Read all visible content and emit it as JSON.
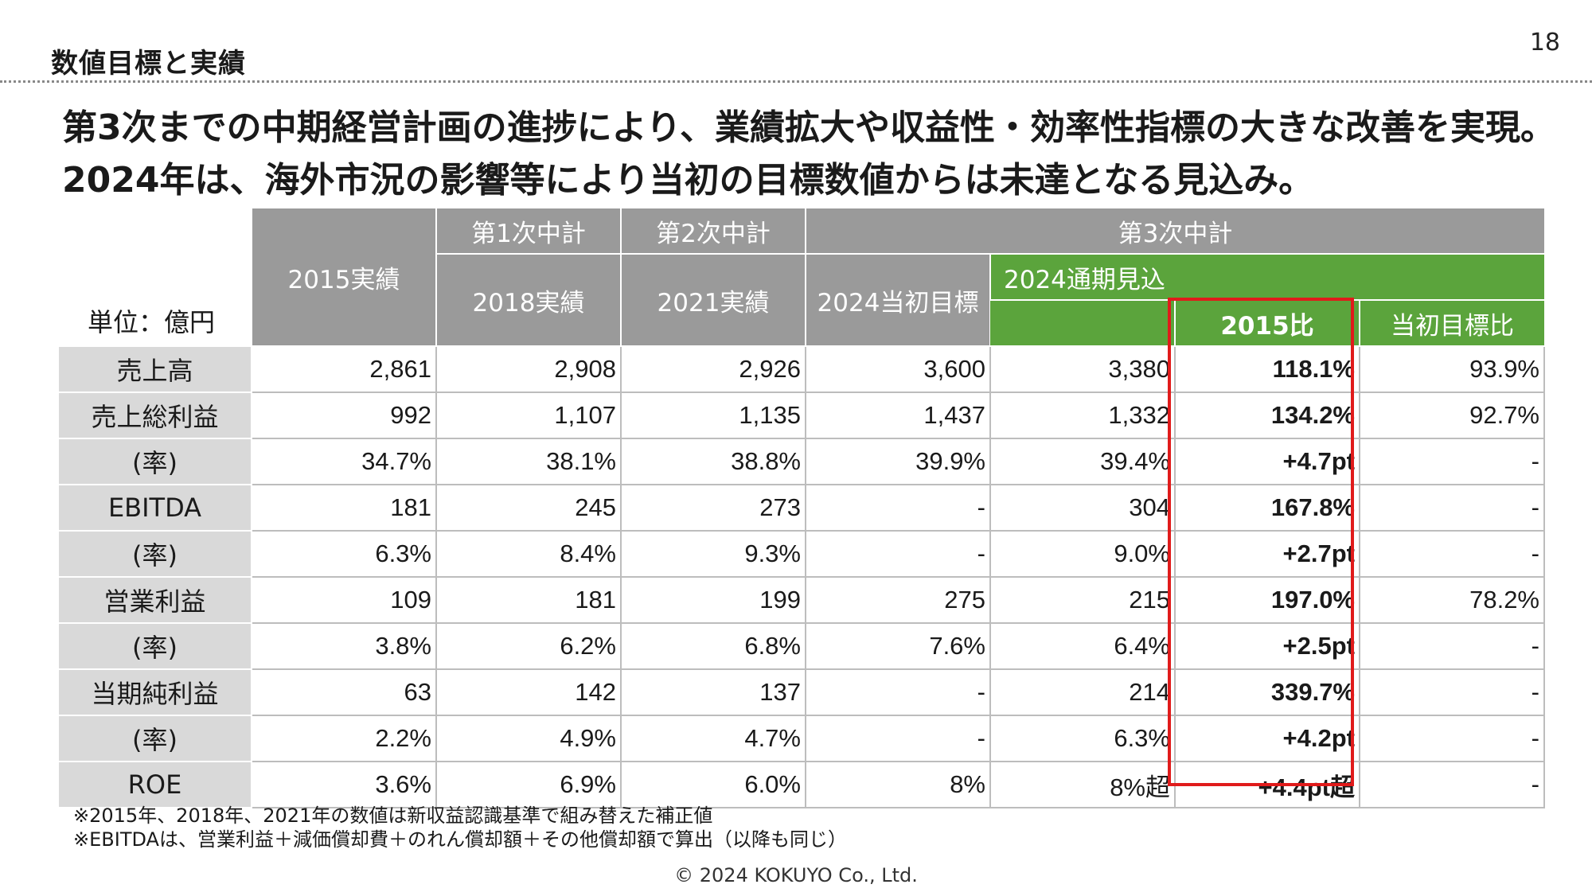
{
  "section_title": "数値目標と実績",
  "page_number": "18",
  "headline": "第3次までの中期経営計画の進捗により、業績拡大や収益性・効率性指標の大きな改善を実現。2024年は、海外市況の影響等により当初の目標数値からは未達となる見込み。",
  "table": {
    "unit_label": "単位：億円",
    "group_headers": {
      "plan1": "第1次中計",
      "plan2": "第2次中計",
      "plan3": "第3次中計"
    },
    "columns": {
      "y2015": "2015実績",
      "y2018": "2018実績",
      "y2021": "2021実績",
      "target2024": "2024当初目標",
      "forecast2024": "2024通期見込",
      "vs2015": "2015比",
      "vs_target": "当初目標比"
    },
    "rows": [
      {
        "label": "売上高",
        "values": [
          "2,861",
          "2,908",
          "2,926",
          "3,600",
          "3,380",
          "118.1%",
          "93.9%"
        ]
      },
      {
        "label": "売上総利益",
        "values": [
          "992",
          "1,107",
          "1,135",
          "1,437",
          "1,332",
          "134.2%",
          "92.7%"
        ]
      },
      {
        "label": "(率)",
        "values": [
          "34.7%",
          "38.1%",
          "38.8%",
          "39.9%",
          "39.4%",
          "+4.7pt",
          "-"
        ]
      },
      {
        "label": "EBITDA",
        "values": [
          "181",
          "245",
          "273",
          "-",
          "304",
          "167.8%",
          "-"
        ]
      },
      {
        "label": "(率)",
        "values": [
          "6.3%",
          "8.4%",
          "9.3%",
          "-",
          "9.0%",
          "+2.7pt",
          "-"
        ]
      },
      {
        "label": "営業利益",
        "values": [
          "109",
          "181",
          "199",
          "275",
          "215",
          "197.0%",
          "78.2%"
        ]
      },
      {
        "label": "(率)",
        "values": [
          "3.8%",
          "6.2%",
          "6.8%",
          "7.6%",
          "6.4%",
          "+2.5pt",
          "-"
        ]
      },
      {
        "label": "当期純利益",
        "values": [
          "63",
          "142",
          "137",
          "-",
          "214",
          "339.7%",
          "-"
        ]
      },
      {
        "label": "(率)",
        "values": [
          "2.2%",
          "4.9%",
          "4.7%",
          "-",
          "6.3%",
          "+4.2pt",
          "-"
        ]
      },
      {
        "label": "ROE",
        "values": [
          "3.6%",
          "6.9%",
          "6.0%",
          "8%",
          "8%超",
          "+4.4pt超",
          "-"
        ]
      }
    ]
  },
  "notes": [
    "※2015年、2018年、2021年の数値は新収益認識基準で組み替えた補正値",
    "※EBITDAは、営業利益＋減価償却費＋のれん償却額＋その他償却額で算出（以降も同じ）"
  ],
  "copyright": "© 2024 KOKUYO Co., Ltd.",
  "colors": {
    "header_gray": "#9a9a9a",
    "header_green": "#5ba43c",
    "label_gray": "#d9d9d9",
    "highlight_red": "#e01b1b"
  }
}
